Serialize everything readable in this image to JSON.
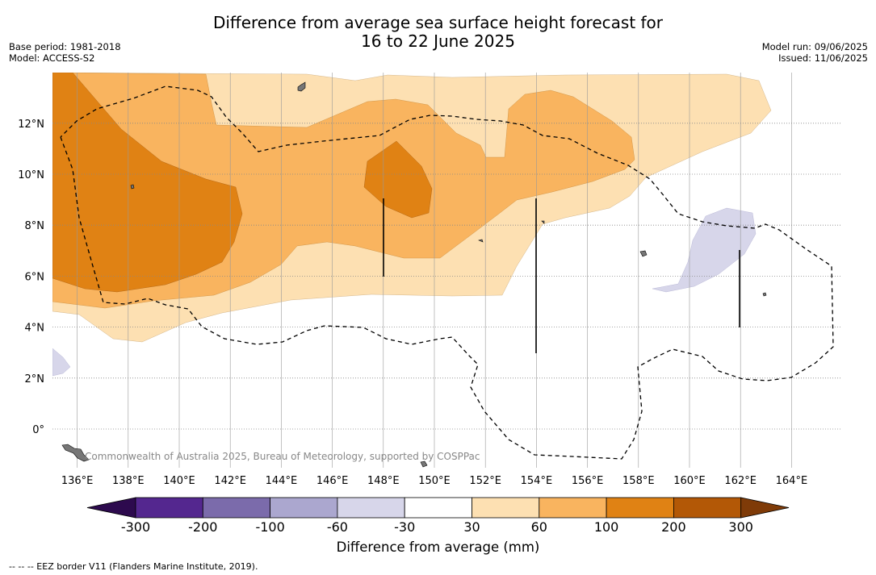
{
  "title": {
    "line1": "Difference from average sea surface height forecast for",
    "line2": "16 to 22 June 2025"
  },
  "meta_left": {
    "base_period": "Base period: 1981-2018",
    "model": "Model: ACCESS-S2"
  },
  "meta_right": {
    "model_run": "Model run: 09/06/2025",
    "issued": "Issued: 11/06/2025"
  },
  "map": {
    "lat_ticks": [
      "12°N",
      "10°N",
      "8°N",
      "6°N",
      "4°N",
      "2°N",
      "0°"
    ],
    "lon_ticks": [
      "136°E",
      "138°E",
      "140°E",
      "142°E",
      "144°E",
      "146°E",
      "148°E",
      "150°E",
      "152°E",
      "154°E",
      "156°E",
      "158°E",
      "160°E",
      "162°E",
      "164°E"
    ],
    "lon_range": [
      135,
      166
    ],
    "lat_range": [
      -1.5,
      14
    ],
    "attribution": "Commonwealth of Australia 2025, Bureau of Meteorology, supported by COSPPac",
    "grid": "dotted"
  },
  "colorbar": {
    "labels": [
      "-300",
      "-200",
      "-100",
      "-60",
      "-30",
      "30",
      "60",
      "100",
      "200",
      "300"
    ],
    "colors": [
      "#2d0a4e",
      "#54278f",
      "#7b6bab",
      "#aba7cf",
      "#d7d6ea",
      "#ffffff",
      "#fde0b2",
      "#f9b45f",
      "#e08214",
      "#b35806",
      "#7f3b08"
    ],
    "title": "Difference from average (mm)"
  },
  "footnote": "--  --  -- EEZ border V11 (Flanders Marine Institute, 2019)."
}
